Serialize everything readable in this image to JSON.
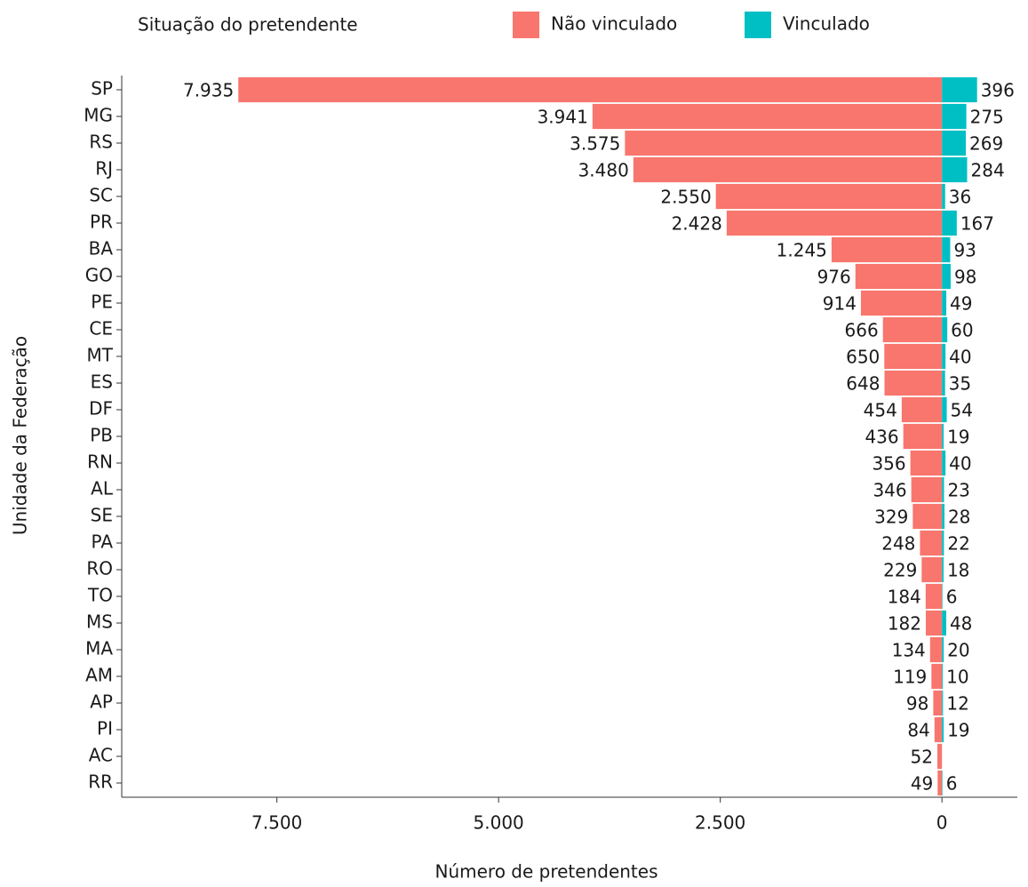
{
  "chart_data": {
    "type": "diverging_bar",
    "legend_title": "Situação do pretendente",
    "xlabel": "Número de pretendentes",
    "ylabel": "Unidade da Federação",
    "categories": [
      "SP",
      "MG",
      "RS",
      "RJ",
      "SC",
      "PR",
      "BA",
      "GO",
      "PE",
      "CE",
      "MT",
      "ES",
      "DF",
      "PB",
      "RN",
      "AL",
      "SE",
      "PA",
      "RO",
      "TO",
      "MS",
      "MA",
      "AM",
      "AP",
      "PI",
      "AC",
      "RR"
    ],
    "series": [
      {
        "name": "Não vinculado",
        "color": "#F8766D",
        "values": [
          7935,
          3941,
          3575,
          3480,
          2550,
          2428,
          1245,
          976,
          914,
          666,
          650,
          648,
          454,
          436,
          356,
          346,
          329,
          248,
          229,
          184,
          182,
          134,
          119,
          98,
          84,
          52,
          49
        ],
        "value_labels": [
          "7.935",
          "3.941",
          "3.575",
          "3.480",
          "2.550",
          "2.428",
          "1.245",
          "976",
          "914",
          "666",
          "650",
          "648",
          "454",
          "436",
          "356",
          "346",
          "329",
          "248",
          "229",
          "184",
          "182",
          "134",
          "119",
          "98",
          "84",
          "52",
          "49"
        ]
      },
      {
        "name": "Vinculado",
        "color": "#00BFC4",
        "values": [
          396,
          275,
          269,
          284,
          36,
          167,
          93,
          98,
          49,
          60,
          40,
          35,
          54,
          19,
          40,
          23,
          28,
          22,
          18,
          6,
          48,
          20,
          10,
          12,
          19,
          null,
          6
        ]
      }
    ],
    "xlim": [
      9250,
      -850
    ],
    "xticks": [
      {
        "value": 7500,
        "label": "7.500"
      },
      {
        "value": 5000,
        "label": "5.000"
      },
      {
        "value": 2500,
        "label": "2.500"
      },
      0
    ]
  }
}
